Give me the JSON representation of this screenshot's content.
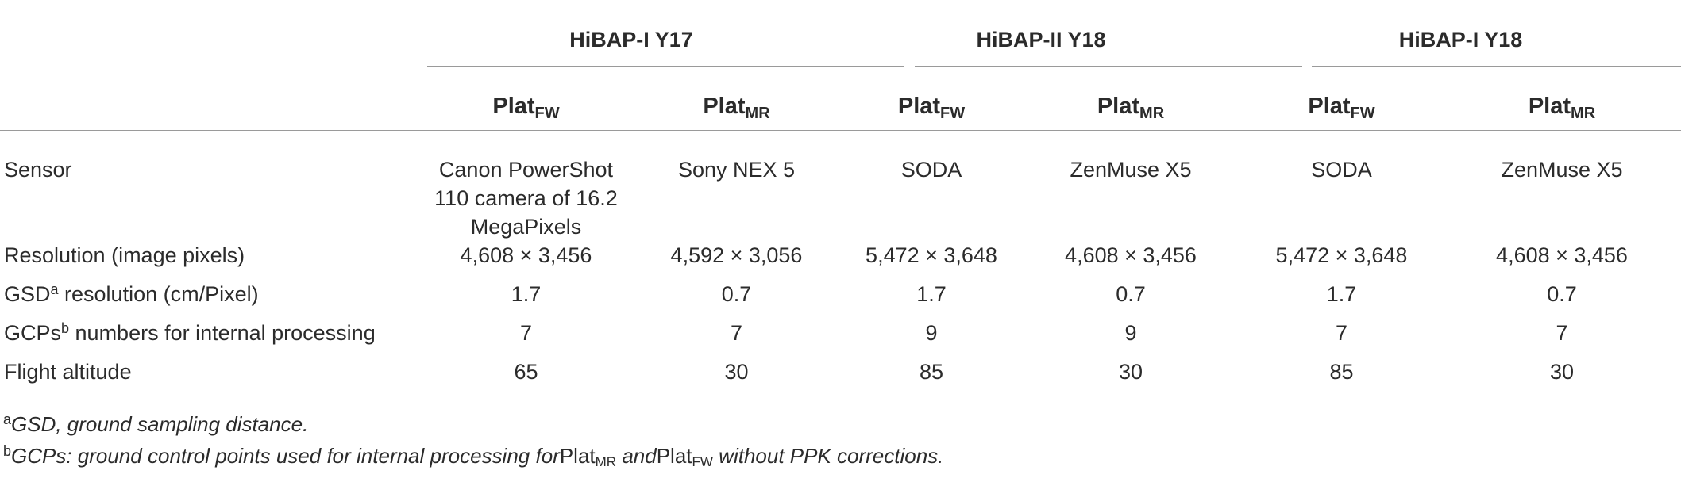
{
  "groups": [
    {
      "label": "HiBAP-I Y17"
    },
    {
      "label": "HiBAP-II Y18"
    },
    {
      "label": "HiBAP-I Y18"
    }
  ],
  "platforms": [
    {
      "base": "Plat",
      "sub": "FW"
    },
    {
      "base": "Plat",
      "sub": "MR"
    },
    {
      "base": "Plat",
      "sub": "FW"
    },
    {
      "base": "Plat",
      "sub": "MR"
    },
    {
      "base": "Plat",
      "sub": "FW"
    },
    {
      "base": "Plat",
      "sub": "MR"
    }
  ],
  "rows": [
    {
      "label": "Sensor",
      "values": [
        "Canon PowerShot 110 camera of 16.2 MegaPixels",
        "Sony NEX 5",
        "SODA",
        "ZenMuse X5",
        "SODA",
        "ZenMuse X5"
      ]
    },
    {
      "label": "Resolution (image pixels)",
      "values": [
        "4,608 × 3,456",
        "4,592 × 3,056",
        "5,472 × 3,648",
        "4,608 × 3,456",
        "5,472 × 3,648",
        "4,608 × 3,456"
      ]
    },
    {
      "label_pre": "GSD",
      "label_sup": "a",
      "label_post": " resolution (cm/Pixel)",
      "values": [
        "1.7",
        "0.7",
        "1.7",
        "0.7",
        "1.7",
        "0.7"
      ]
    },
    {
      "label_pre": "GCPs",
      "label_sup": "b",
      "label_post": " numbers for internal processing",
      "values": [
        "7",
        "7",
        "9",
        "9",
        "7",
        "7"
      ]
    },
    {
      "label": "Flight altitude",
      "values": [
        "65",
        "30",
        "85",
        "30",
        "85",
        "30"
      ]
    }
  ],
  "footnotes": {
    "a": {
      "mark": "a",
      "text": "GSD, ground sampling distance."
    },
    "b": {
      "mark": "b",
      "text_1": "GCPs: ground control points used for internal processing for",
      "plat_1": {
        "base": "Plat",
        "sub": "MR"
      },
      "text_2": " and",
      "plat_2": {
        "base": "Plat",
        "sub": "FW"
      },
      "text_3": " without PPK corrections."
    }
  }
}
